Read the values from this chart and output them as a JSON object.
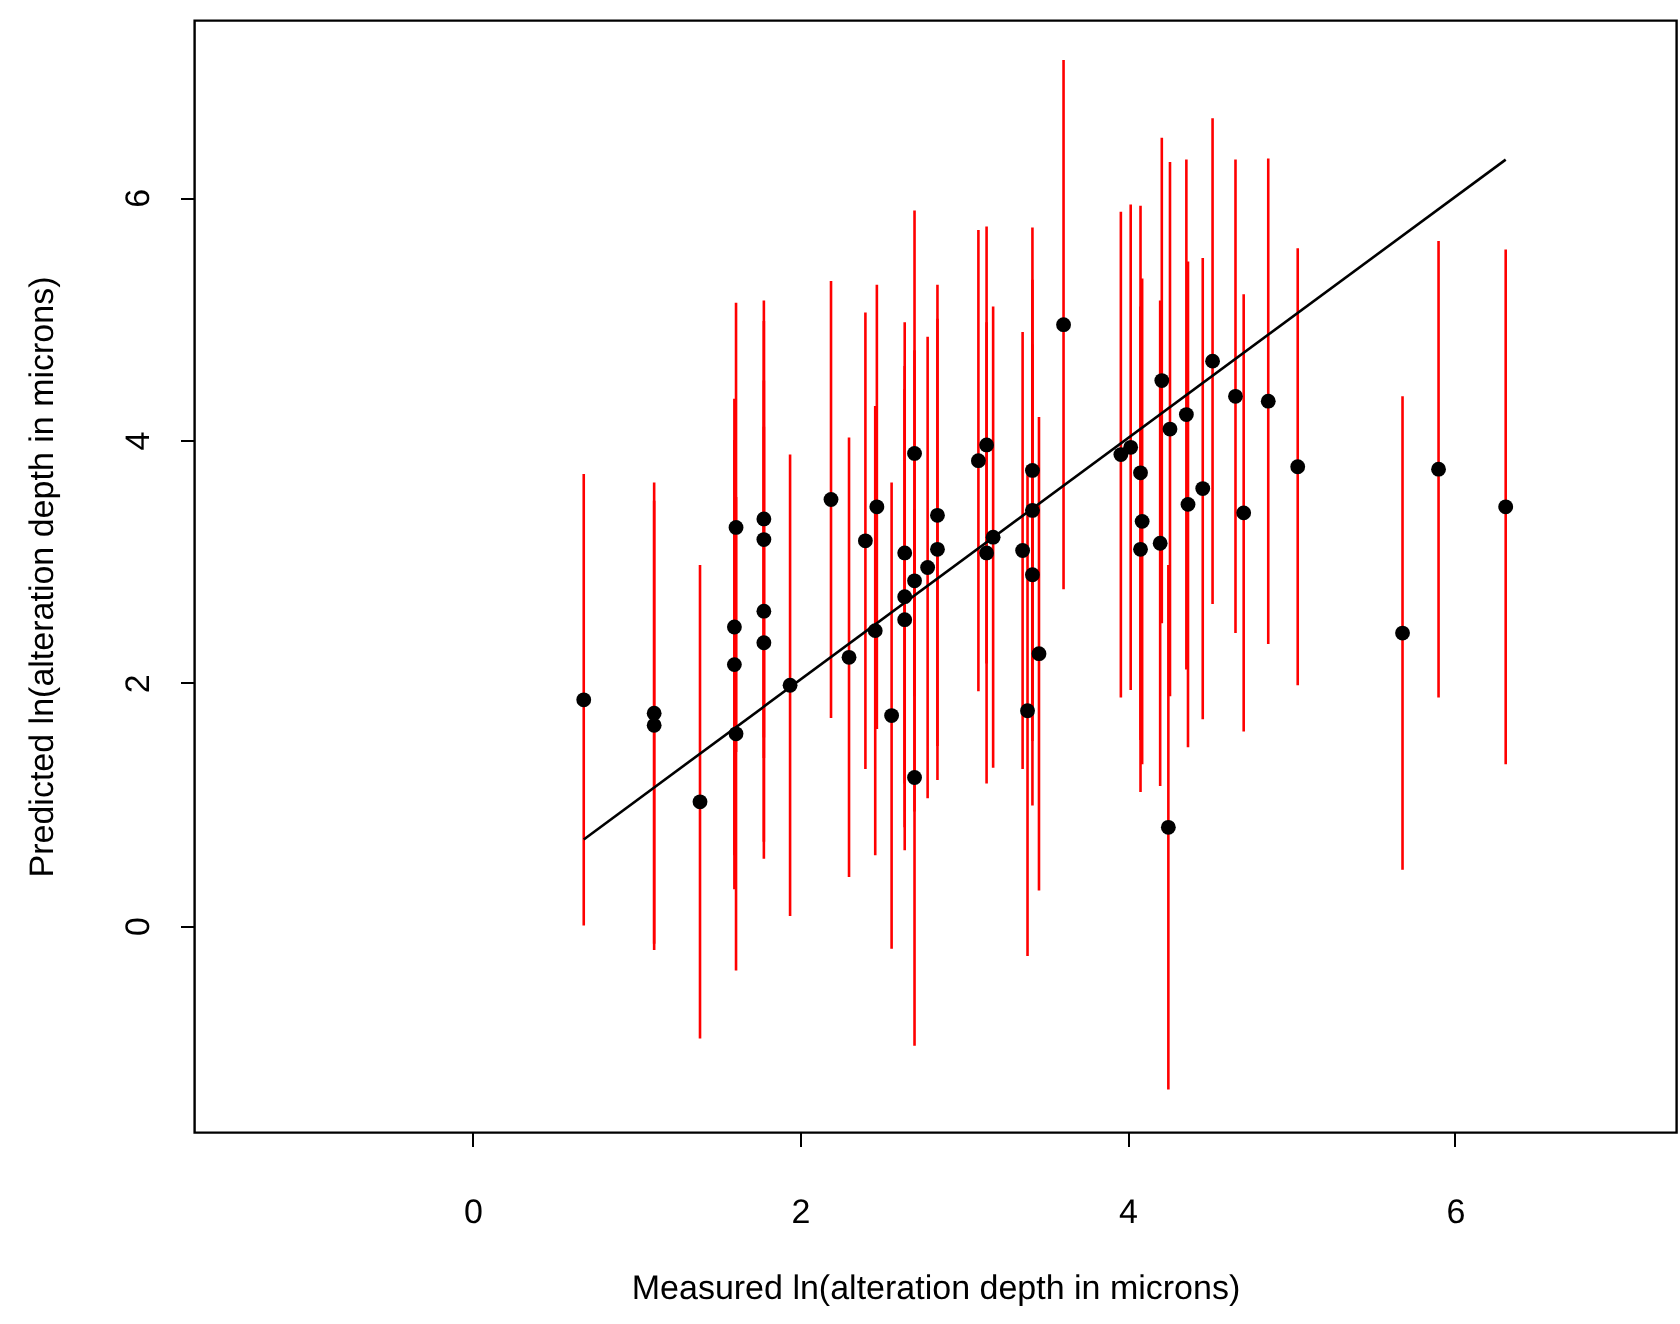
{
  "chart_data": {
    "type": "scatter",
    "xlabel": "Measured ln(alteration depth in microns)",
    "ylabel": "Predicted ln(alteration depth in microns)",
    "xlim": [
      -1.7,
      7.35
    ],
    "ylim": [
      -1.7,
      7.46
    ],
    "xticks": [
      0,
      2,
      4,
      6
    ],
    "yticks": [
      0,
      2,
      4,
      6
    ],
    "series": [
      {
        "color": "#000000",
        "marker": "circle",
        "x": [
          0.68,
          1.11,
          1.11,
          1.39,
          1.61,
          1.6,
          1.6,
          1.61,
          1.78,
          1.78,
          1.78,
          1.78,
          1.94,
          2.19,
          2.3,
          2.4,
          2.47,
          2.46,
          2.56,
          2.64,
          2.64,
          2.64,
          2.7,
          2.7,
          2.7,
          2.78,
          2.84,
          2.84,
          3.09,
          3.14,
          3.14,
          3.18,
          3.36,
          3.42,
          3.42,
          3.42,
          3.46,
          3.39,
          3.61,
          3.96,
          4.02,
          4.08,
          4.09,
          4.08,
          4.2,
          4.21,
          4.26,
          4.25,
          4.52,
          4.36,
          4.66,
          4.86,
          4.46,
          4.37,
          4.71,
          5.04,
          5.68,
          5.9,
          6.31
        ],
        "values": [
          1.86,
          1.75,
          1.65,
          1.02,
          3.28,
          2.46,
          2.15,
          1.58,
          3.35,
          3.18,
          2.59,
          2.33,
          1.98,
          3.51,
          2.21,
          3.17,
          3.45,
          2.43,
          1.73,
          3.07,
          2.71,
          2.52,
          3.89,
          2.84,
          1.22,
          2.95,
          3.38,
          3.1,
          3.83,
          3.96,
          3.07,
          3.2,
          3.09,
          3.75,
          3.42,
          2.89,
          2.24,
          1.77,
          4.95,
          3.88,
          3.94,
          3.73,
          3.33,
          3.1,
          3.15,
          4.49,
          4.09,
          0.81,
          4.65,
          4.21,
          4.36,
          4.32,
          3.6,
          3.47,
          3.4,
          3.78,
          2.41,
          3.76,
          3.45
        ],
        "errors": [
          1.86,
          1.9,
          1.85,
          1.95,
          1.85,
          1.88,
          1.85,
          1.95,
          1.8,
          1.8,
          1.9,
          1.78,
          1.9,
          1.8,
          1.81,
          1.88,
          1.83,
          1.85,
          1.92,
          1.9,
          1.9,
          1.9,
          2.0,
          1.9,
          2.21,
          1.9,
          1.9,
          1.9,
          1.9,
          1.8,
          1.9,
          1.9,
          1.8,
          2.0,
          1.9,
          1.9,
          1.95,
          2.02,
          2.18,
          2.0,
          2.0,
          2.2,
          2.0,
          2.0,
          2.0,
          2.0,
          2.2,
          2.16,
          2.0,
          2.1,
          1.95,
          2.0,
          1.9,
          2.0,
          1.8,
          1.8,
          1.95,
          1.88,
          2.12
        ]
      },
      {
        "type": "line",
        "color": "#000000",
        "marker": "none",
        "x": [
          0.68,
          6.31
        ],
        "values": [
          0.71,
          6.31
        ]
      }
    ]
  }
}
